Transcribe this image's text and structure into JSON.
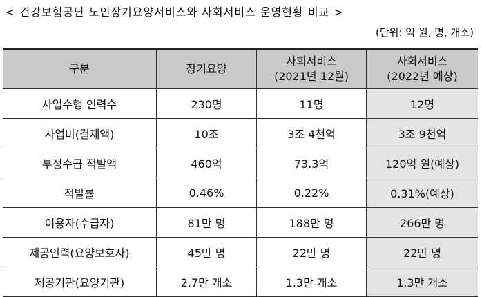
{
  "header": {
    "title": "< 건강보험공단 노인장기요양서비스와 사회서비스 운영현황 비교 >",
    "unit": "(단위: 억 원, 명, 개소)"
  },
  "table": {
    "columns": [
      [
        "구분"
      ],
      [
        "장기요양"
      ],
      [
        "사회서비스",
        "(2021년 12월)"
      ],
      [
        "사회서비스",
        "(2022년 예상)"
      ]
    ],
    "rows": [
      [
        "사업수행 인력수",
        "230명",
        "11명",
        "12명"
      ],
      [
        "사업비(결제액)",
        "10조",
        "3조 4천억",
        "3조 9천억"
      ],
      [
        "부정수급 적발액",
        "460억",
        "73.3억",
        "120억 원(예상)"
      ],
      [
        "적발률",
        "0.46%",
        "0.22%",
        "0.31%(예상)"
      ],
      [
        "이용자(수급자)",
        "81만 명",
        "188만 명",
        "266만 명"
      ],
      [
        "제공인력(요양보호사)",
        "45만 명",
        "22만 명",
        "22만 명"
      ],
      [
        "제공기관(요양기관)",
        "2.7만 개소",
        "1.3만 개소",
        "1.3만 개소"
      ]
    ]
  }
}
